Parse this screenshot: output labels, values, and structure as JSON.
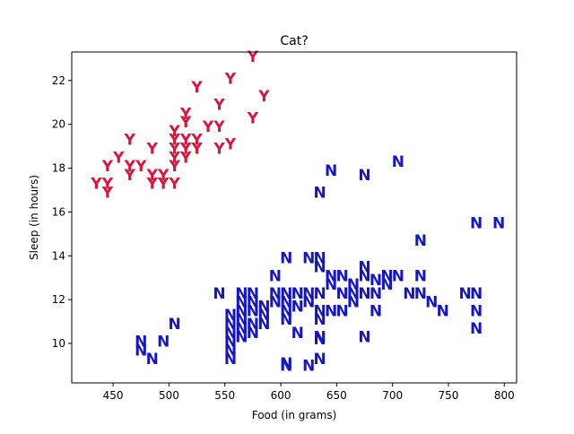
{
  "chart_data": {
    "type": "scatter",
    "title": "Cat?",
    "xlabel": "Food (in grams)",
    "ylabel": "Sleep (in hours)",
    "xlim": [
      413,
      811
    ],
    "ylim": [
      8.2,
      23.3
    ],
    "xticks": [
      450,
      500,
      550,
      600,
      650,
      700,
      750,
      800
    ],
    "yticks": [
      10,
      12,
      14,
      16,
      18,
      20,
      22
    ],
    "grid": false,
    "series": [
      {
        "marker": "Y",
        "color": "#dc143c",
        "points": [
          [
            435,
            17.3
          ],
          [
            445,
            17.3
          ],
          [
            445,
            16.9
          ],
          [
            445,
            18.1
          ],
          [
            455,
            18.5
          ],
          [
            465,
            19.3
          ],
          [
            465,
            18.1
          ],
          [
            465,
            17.7
          ],
          [
            475,
            18.1
          ],
          [
            485,
            18.9
          ],
          [
            485,
            17.7
          ],
          [
            485,
            17.3
          ],
          [
            495,
            17.7
          ],
          [
            495,
            17.3
          ],
          [
            505,
            17.3
          ],
          [
            505,
            19.7
          ],
          [
            505,
            19.3
          ],
          [
            505,
            18.9
          ],
          [
            505,
            18.5
          ],
          [
            505,
            18.1
          ],
          [
            515,
            20.5
          ],
          [
            515,
            20.1
          ],
          [
            515,
            19.3
          ],
          [
            515,
            18.9
          ],
          [
            515,
            18.5
          ],
          [
            525,
            21.7
          ],
          [
            525,
            19.3
          ],
          [
            525,
            18.9
          ],
          [
            535,
            19.9
          ],
          [
            545,
            20.9
          ],
          [
            545,
            19.9
          ],
          [
            545,
            18.9
          ],
          [
            555,
            22.1
          ],
          [
            555,
            19.1
          ],
          [
            575,
            23.1
          ],
          [
            575,
            20.3
          ],
          [
            585,
            21.3
          ]
        ]
      },
      {
        "marker": "N",
        "color": "#1515c8",
        "points": [
          [
            545,
            12.3
          ],
          [
            555,
            11.3
          ],
          [
            555,
            10.9
          ],
          [
            555,
            10.5
          ],
          [
            555,
            10.1
          ],
          [
            555,
            9.7
          ],
          [
            555,
            9.3
          ],
          [
            565,
            12.3
          ],
          [
            565,
            11.9
          ],
          [
            565,
            11.5
          ],
          [
            565,
            11.1
          ],
          [
            565,
            10.7
          ],
          [
            565,
            10.3
          ],
          [
            575,
            12.3
          ],
          [
            575,
            11.9
          ],
          [
            575,
            11.5
          ],
          [
            575,
            10.9
          ],
          [
            575,
            10.5
          ],
          [
            585,
            11.7
          ],
          [
            585,
            11.3
          ],
          [
            585,
            10.9
          ],
          [
            595,
            13.1
          ],
          [
            595,
            12.3
          ],
          [
            595,
            11.9
          ],
          [
            605,
            13.9
          ],
          [
            605,
            12.3
          ],
          [
            605,
            11.9
          ],
          [
            605,
            11.5
          ],
          [
            605,
            11.1
          ],
          [
            605,
            9.0
          ],
          [
            605,
            9.1
          ],
          [
            615,
            12.3
          ],
          [
            615,
            11.7
          ],
          [
            615,
            10.5
          ],
          [
            625,
            13.9
          ],
          [
            625,
            12.3
          ],
          [
            625,
            11.9
          ],
          [
            625,
            9.0
          ],
          [
            635,
            13.9
          ],
          [
            635,
            13.5
          ],
          [
            635,
            12.3
          ],
          [
            635,
            11.5
          ],
          [
            635,
            11.1
          ],
          [
            635,
            10.3
          ],
          [
            635,
            10.2
          ],
          [
            635,
            9.3
          ],
          [
            635,
            16.9
          ],
          [
            645,
            13.1
          ],
          [
            645,
            12.7
          ],
          [
            645,
            11.5
          ],
          [
            645,
            17.9
          ],
          [
            655,
            13.1
          ],
          [
            655,
            12.3
          ],
          [
            655,
            11.5
          ],
          [
            665,
            12.7
          ],
          [
            665,
            12.3
          ],
          [
            665,
            11.9
          ],
          [
            675,
            13.5
          ],
          [
            675,
            13.1
          ],
          [
            675,
            12.3
          ],
          [
            675,
            10.3
          ],
          [
            675,
            17.7
          ],
          [
            685,
            12.9
          ],
          [
            685,
            12.3
          ],
          [
            685,
            11.5
          ],
          [
            695,
            13.1
          ],
          [
            695,
            12.7
          ],
          [
            705,
            13.1
          ],
          [
            705,
            18.3
          ],
          [
            715,
            12.3
          ],
          [
            725,
            14.7
          ],
          [
            725,
            13.1
          ],
          [
            725,
            12.3
          ],
          [
            735,
            11.9
          ],
          [
            745,
            11.5
          ],
          [
            765,
            12.3
          ],
          [
            775,
            15.5
          ],
          [
            775,
            12.3
          ],
          [
            775,
            11.5
          ],
          [
            775,
            10.7
          ],
          [
            795,
            15.5
          ],
          [
            475,
            10.1
          ],
          [
            475,
            9.7
          ],
          [
            485,
            9.3
          ],
          [
            495,
            10.1
          ],
          [
            505,
            10.9
          ]
        ]
      }
    ]
  }
}
